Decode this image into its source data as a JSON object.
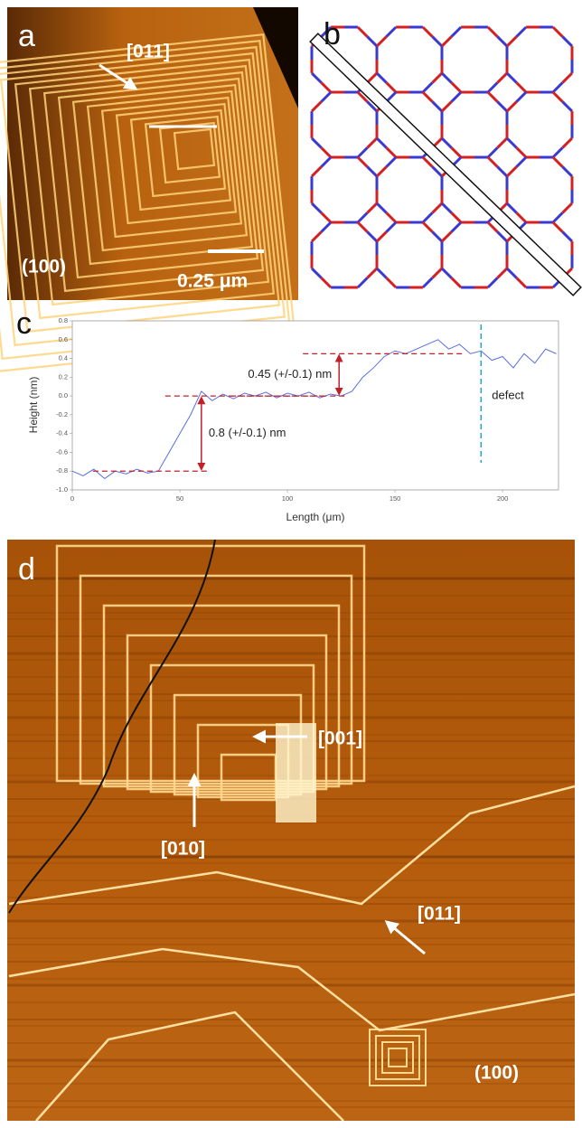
{
  "panel_a": {
    "label": "a",
    "direction": "[011]",
    "face": "(100)",
    "scale_bar": "0.25 μm"
  },
  "panel_b": {
    "label": "b"
  },
  "chart_data": {
    "type": "line",
    "panel_label": "c",
    "x_label": "Length (μm)",
    "y_label": "Height (nm)",
    "x": [
      0,
      5,
      10,
      15,
      20,
      25,
      30,
      35,
      40,
      45,
      50,
      55,
      60,
      65,
      70,
      75,
      80,
      85,
      90,
      95,
      100,
      105,
      110,
      115,
      120,
      125,
      130,
      135,
      140,
      145,
      150,
      155,
      160,
      165,
      170,
      175,
      180,
      185,
      190,
      195,
      200,
      205,
      210,
      215,
      220,
      225
    ],
    "values": [
      -0.8,
      -0.85,
      -0.78,
      -0.88,
      -0.8,
      -0.83,
      -0.78,
      -0.82,
      -0.8,
      -0.6,
      -0.4,
      -0.2,
      0.05,
      -0.05,
      0.02,
      -0.03,
      0.03,
      0.0,
      0.04,
      -0.02,
      0.03,
      0.0,
      0.04,
      -0.02,
      0.02,
      0.0,
      0.05,
      0.2,
      0.3,
      0.42,
      0.48,
      0.45,
      0.5,
      0.55,
      0.6,
      0.5,
      0.55,
      0.45,
      0.48,
      0.38,
      0.42,
      0.3,
      0.45,
      0.35,
      0.5,
      0.45
    ],
    "color": "#5a6ee0",
    "xlim": [
      0,
      226
    ],
    "ylim": [
      -1,
      0.8
    ],
    "xticks": [
      0,
      50,
      100,
      150,
      200
    ],
    "yticks": [
      {
        "value": -1,
        "label": "-1.0"
      },
      -0.8,
      -0.6,
      -0.4,
      -0.2,
      {
        "value": 0,
        "label": "0.0"
      },
      0.2,
      0.4,
      0.6,
      0.8
    ],
    "steps": [
      {
        "label": "0.8 (+/-0.1) nm",
        "from": -0.8,
        "to": 0,
        "x": 60,
        "color": "#c0202a"
      },
      {
        "label": "0.45 (+/-0.1) nm",
        "from": 0,
        "to": 0.45,
        "x": 124,
        "color": "#c0202a"
      }
    ],
    "defect": {
      "label": "defect",
      "x": 190,
      "color": "#20a8c8"
    }
  },
  "panel_d": {
    "label": "d",
    "directions": [
      "[001]",
      "[010]",
      "[011]"
    ],
    "face": "(100)"
  }
}
